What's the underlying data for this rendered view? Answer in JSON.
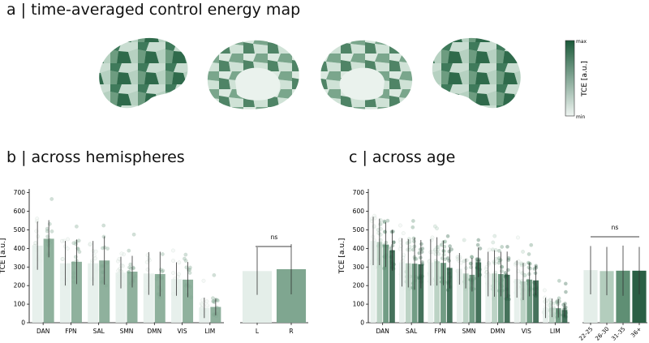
{
  "panels": {
    "a_title": "a | time-averaged control energy map",
    "b_title": "b | across hemispheres",
    "c_title": "c | across age"
  },
  "colorbar": {
    "label": "TCE [a.u.]",
    "max_label": "max",
    "min_label": "min",
    "low_color": "#eef4f1",
    "high_color": "#1b5a3a"
  },
  "chart_data": [
    {
      "type": "bar",
      "title": "b | across hemispheres",
      "ylabel": "TCE [a.u.]",
      "ylim": [
        0,
        720
      ],
      "yticks": [
        0,
        100,
        200,
        300,
        400,
        500,
        600,
        700
      ],
      "categories": [
        "DAN",
        "FPN",
        "SAL",
        "SMN",
        "DMN",
        "VIS",
        "LIM"
      ],
      "series": [
        {
          "name": "L",
          "color": "#e4eee9",
          "values": [
            415,
            320,
            320,
            270,
            265,
            235,
            80
          ],
          "err": [
            130,
            120,
            120,
            85,
            115,
            90,
            55
          ]
        },
        {
          "name": "R",
          "color": "#7fa690",
          "values": [
            452,
            328,
            335,
            275,
            262,
            232,
            85
          ],
          "err": [
            100,
            120,
            130,
            85,
            120,
            95,
            45
          ]
        }
      ],
      "summary": {
        "categories": [
          "L",
          "R"
        ],
        "values": [
          278,
          288
        ],
        "err": [
          128,
          135
        ],
        "colors": [
          "#e4eee9",
          "#7fa690"
        ],
        "sig_label": "ns"
      }
    },
    {
      "type": "bar",
      "title": "c | across age",
      "ylabel": "TCE [a.u.]",
      "ylim": [
        0,
        720
      ],
      "yticks": [
        0,
        100,
        200,
        300,
        400,
        500,
        600,
        700
      ],
      "categories": [
        "DAN",
        "SAL",
        "FPN",
        "SMN",
        "DMN",
        "VIS",
        "LIM"
      ],
      "series": [
        {
          "name": "22-25",
          "color": "#e4eee9",
          "values": [
            440,
            325,
            325,
            290,
            262,
            235,
            80
          ],
          "err": [
            130,
            130,
            125,
            85,
            120,
            100,
            55
          ]
        },
        {
          "name": "26-30",
          "color": "#b3cdbd",
          "values": [
            435,
            320,
            330,
            265,
            265,
            222,
            80
          ],
          "err": [
            125,
            130,
            130,
            80,
            125,
            100,
            50
          ]
        },
        {
          "name": "31-35",
          "color": "#5f8f74",
          "values": [
            420,
            318,
            322,
            258,
            262,
            232,
            78
          ],
          "err": [
            120,
            140,
            120,
            90,
            120,
            90,
            50
          ]
        },
        {
          "name": "36+",
          "color": "#2b5f44",
          "values": [
            390,
            315,
            295,
            325,
            258,
            228,
            68
          ],
          "err": [
            110,
            130,
            110,
            80,
            125,
            80,
            35
          ]
        }
      ],
      "summary": {
        "categories": [
          "22-25",
          "26-30",
          "31-35",
          "36+"
        ],
        "values": [
          283,
          278,
          280,
          280
        ],
        "err": [
          130,
          130,
          135,
          128
        ],
        "colors": [
          "#e4eee9",
          "#b3cdbd",
          "#5f8f74",
          "#2b5f44"
        ],
        "sig_label": "ns"
      }
    }
  ]
}
